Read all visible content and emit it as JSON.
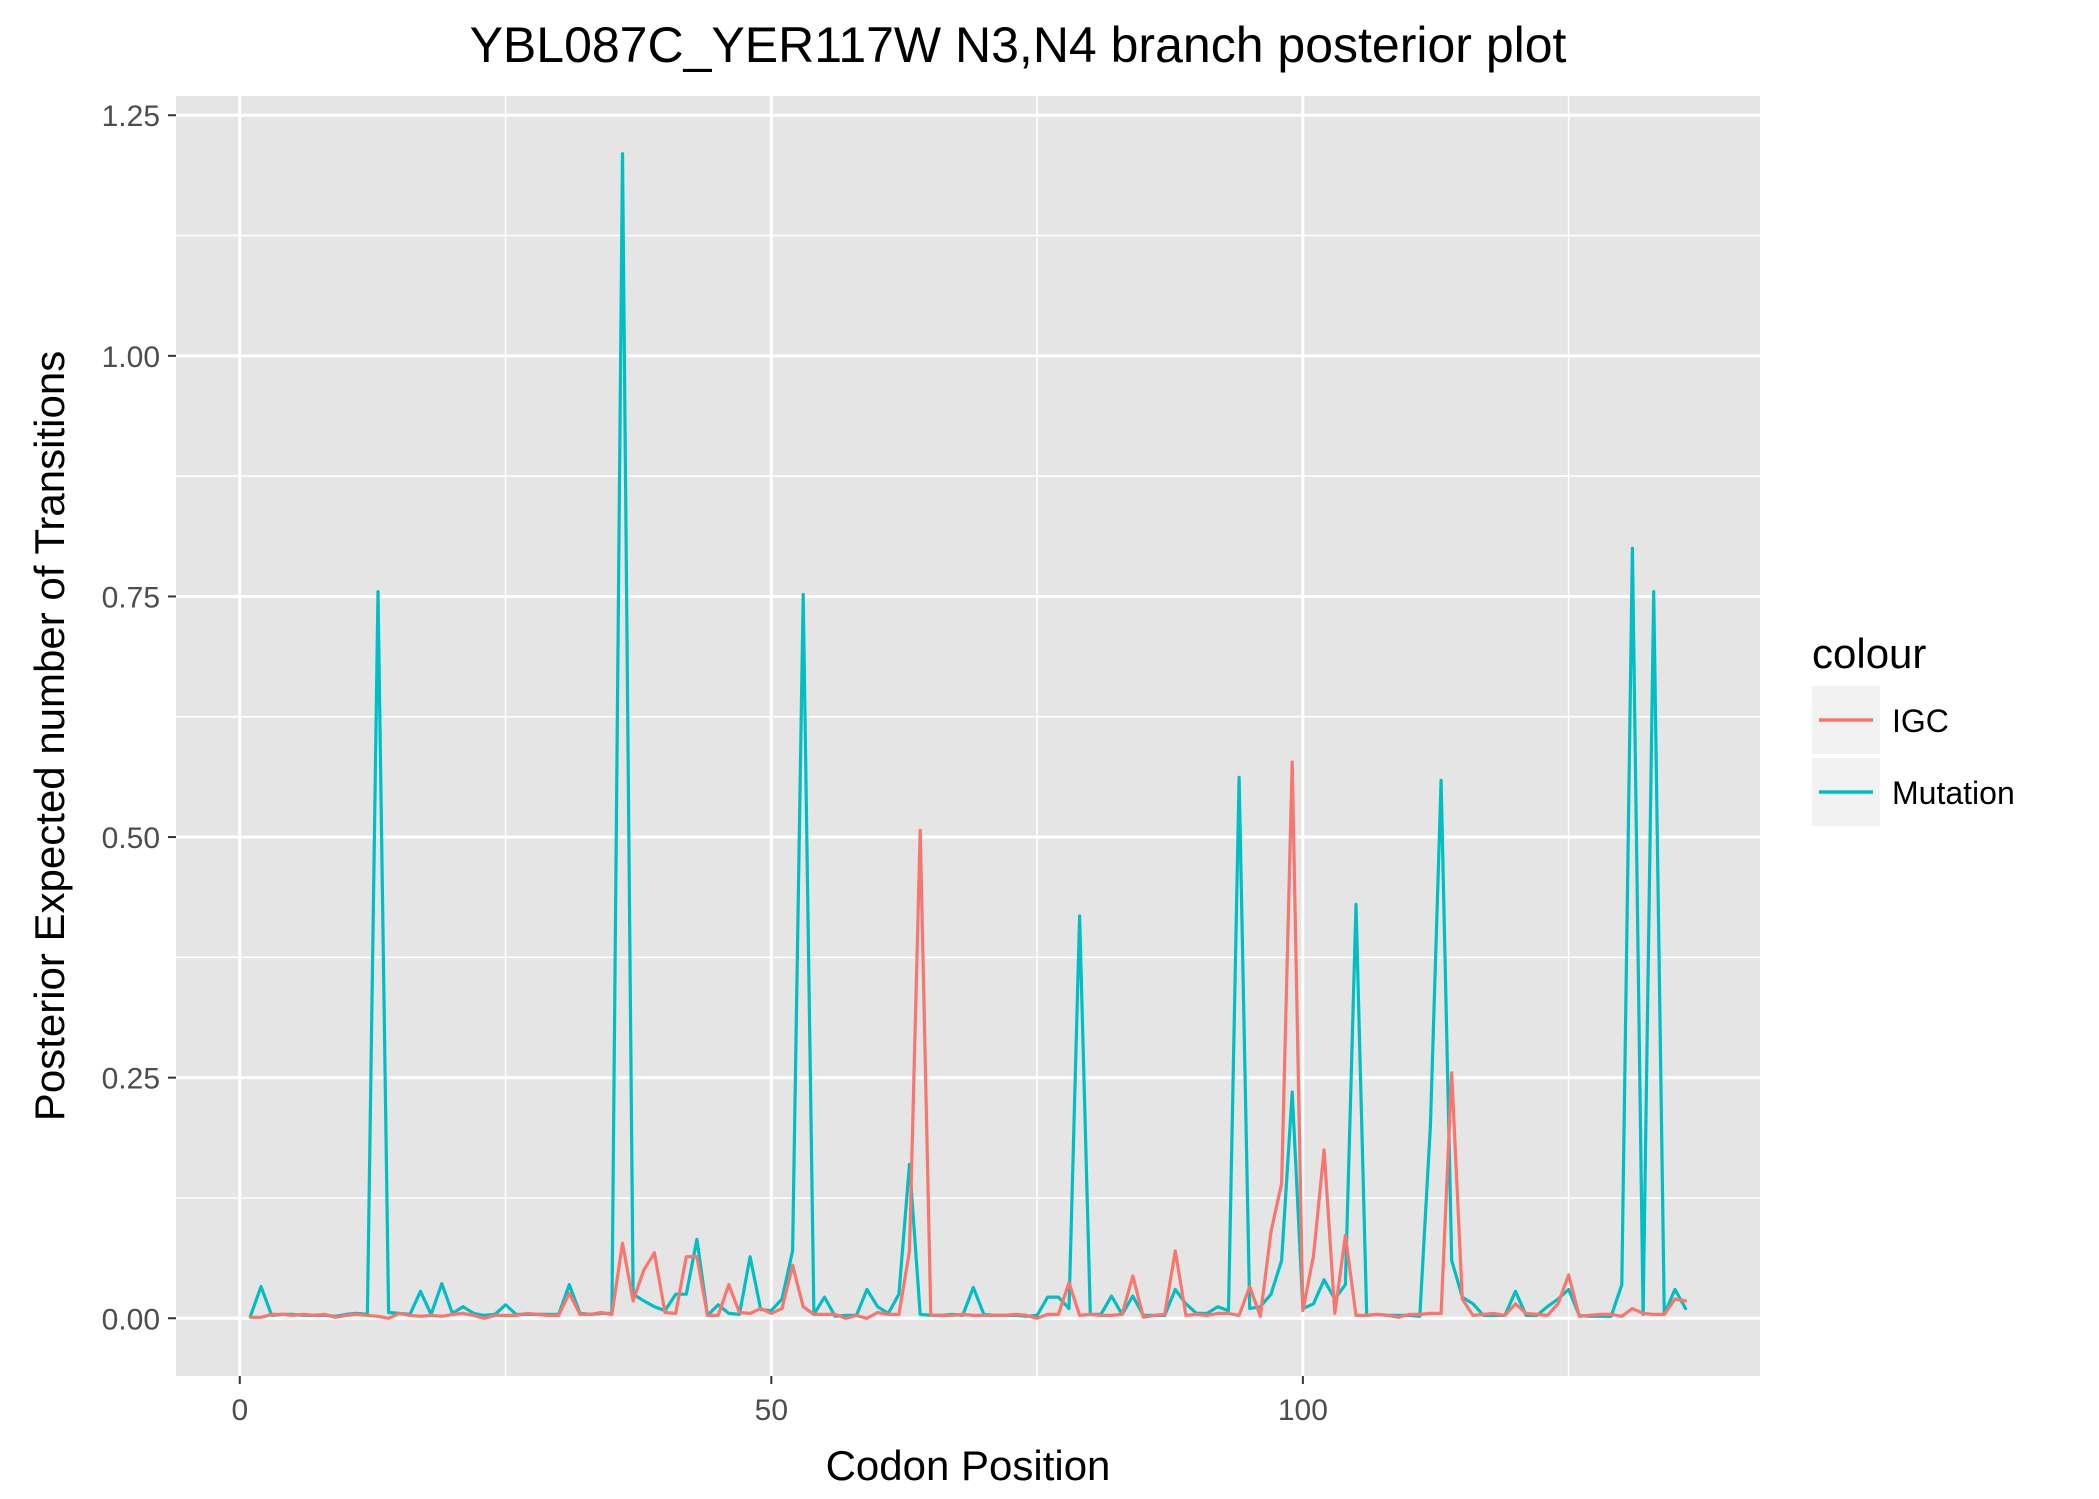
{
  "chart_data": {
    "type": "line",
    "title": "YBL087C_YER117W N3,N4 branch posterior plot",
    "xlabel": "Codon Position",
    "ylabel": "Posterior Expected number of Transitions",
    "xlim": [
      -6,
      143
    ],
    "ylim": [
      -0.06,
      1.27
    ],
    "x_ticks": [
      0,
      50,
      100
    ],
    "x_tick_labels": [
      "0",
      "50",
      "100"
    ],
    "y_ticks": [
      0,
      0.25,
      0.5,
      0.75,
      1.0,
      1.25
    ],
    "y_tick_labels": [
      "0.00",
      "0.25",
      "0.50",
      "0.75",
      "1.00",
      "1.25"
    ],
    "grid": true,
    "legend_position": "right",
    "legend_title": "colour",
    "series": [
      {
        "name": "Mutation",
        "color": "#00BFC4",
        "x": [
          1,
          2,
          3,
          4,
          5,
          6,
          7,
          8,
          9,
          10,
          11,
          12,
          13,
          14,
          15,
          16,
          17,
          18,
          19,
          20,
          21,
          22,
          23,
          24,
          25,
          26,
          27,
          28,
          29,
          30,
          31,
          32,
          33,
          34,
          35,
          36,
          37,
          38,
          39,
          40,
          41,
          42,
          43,
          44,
          45,
          46,
          47,
          48,
          49,
          50,
          51,
          52,
          53,
          54,
          55,
          56,
          57,
          58,
          59,
          60,
          61,
          62,
          63,
          64,
          65,
          66,
          67,
          68,
          69,
          70,
          71,
          72,
          73,
          74,
          75,
          76,
          77,
          78,
          79,
          80,
          81,
          82,
          83,
          84,
          85,
          86,
          87,
          88,
          89,
          90,
          91,
          92,
          93,
          94,
          95,
          96,
          97,
          98,
          99,
          100,
          101,
          102,
          103,
          104,
          105,
          106,
          107,
          108,
          109,
          110,
          111,
          112,
          113,
          114,
          115,
          116,
          117,
          118,
          119,
          120,
          121,
          122,
          123,
          124,
          125,
          126,
          127,
          128,
          129,
          130,
          131,
          132,
          133,
          134,
          135,
          136
        ],
        "y": [
          0.002,
          0.033,
          0.003,
          0.004,
          0.004,
          0.003,
          0.003,
          0.003,
          0.002,
          0.004,
          0.005,
          0.004,
          0.755,
          0.006,
          0.005,
          0.004,
          0.028,
          0.004,
          0.036,
          0.005,
          0.012,
          0.005,
          0.003,
          0.004,
          0.014,
          0.004,
          0.004,
          0.004,
          0.004,
          0.004,
          0.035,
          0.005,
          0.004,
          0.005,
          0.005,
          1.21,
          0.025,
          0.018,
          0.012,
          0.008,
          0.025,
          0.025,
          0.082,
          0.003,
          0.014,
          0.005,
          0.004,
          0.064,
          0.009,
          0.008,
          0.02,
          0.07,
          0.752,
          0.004,
          0.022,
          0.002,
          0.003,
          0.003,
          0.03,
          0.012,
          0.005,
          0.025,
          0.16,
          0.004,
          0.003,
          0.003,
          0.004,
          0.003,
          0.032,
          0.004,
          0.003,
          0.003,
          0.003,
          0.002,
          0.003,
          0.022,
          0.022,
          0.01,
          0.418,
          0.004,
          0.004,
          0.023,
          0.004,
          0.023,
          0.003,
          0.003,
          0.003,
          0.03,
          0.015,
          0.005,
          0.005,
          0.012,
          0.008,
          0.562,
          0.01,
          0.012,
          0.025,
          0.06,
          0.235,
          0.01,
          0.015,
          0.04,
          0.02,
          0.035,
          0.43,
          0.003,
          0.004,
          0.003,
          0.003,
          0.003,
          0.002,
          0.2,
          0.559,
          0.06,
          0.022,
          0.015,
          0.003,
          0.003,
          0.003,
          0.028,
          0.003,
          0.003,
          0.012,
          0.02,
          0.03,
          0.003,
          0.002,
          0.002,
          0.002,
          0.035,
          0.8,
          0.004,
          0.755,
          0.004,
          0.03,
          0.01
        ]
      },
      {
        "name": "IGC",
        "color": "#F8766D",
        "x": [
          1,
          2,
          3,
          4,
          5,
          6,
          7,
          8,
          9,
          10,
          11,
          12,
          13,
          14,
          15,
          16,
          17,
          18,
          19,
          20,
          21,
          22,
          23,
          24,
          25,
          26,
          27,
          28,
          29,
          30,
          31,
          32,
          33,
          34,
          35,
          36,
          37,
          38,
          39,
          40,
          41,
          42,
          43,
          44,
          45,
          46,
          47,
          48,
          49,
          50,
          51,
          52,
          53,
          54,
          55,
          56,
          57,
          58,
          59,
          60,
          61,
          62,
          63,
          64,
          65,
          66,
          67,
          68,
          69,
          70,
          71,
          72,
          73,
          74,
          75,
          76,
          77,
          78,
          79,
          80,
          81,
          82,
          83,
          84,
          85,
          86,
          87,
          88,
          89,
          90,
          91,
          92,
          93,
          94,
          95,
          96,
          97,
          98,
          99,
          100,
          101,
          102,
          103,
          104,
          105,
          106,
          107,
          108,
          109,
          110,
          111,
          112,
          113,
          114,
          115,
          116,
          117,
          118,
          119,
          120,
          121,
          122,
          123,
          124,
          125,
          126,
          127,
          128,
          129,
          130,
          131,
          132,
          133,
          134,
          135,
          136
        ],
        "y": [
          0.001,
          0.001,
          0.004,
          0.004,
          0.003,
          0.004,
          0.003,
          0.004,
          0.001,
          0.003,
          0.004,
          0.003,
          0.002,
          0.0,
          0.005,
          0.003,
          0.002,
          0.003,
          0.002,
          0.004,
          0.005,
          0.003,
          0.0,
          0.003,
          0.003,
          0.003,
          0.005,
          0.004,
          0.003,
          0.003,
          0.026,
          0.004,
          0.004,
          0.006,
          0.004,
          0.078,
          0.018,
          0.05,
          0.068,
          0.006,
          0.005,
          0.064,
          0.064,
          0.003,
          0.003,
          0.035,
          0.006,
          0.005,
          0.01,
          0.005,
          0.01,
          0.055,
          0.012,
          0.004,
          0.004,
          0.004,
          0.0,
          0.003,
          0.0,
          0.006,
          0.004,
          0.004,
          0.07,
          0.507,
          0.003,
          0.003,
          0.003,
          0.004,
          0.003,
          0.003,
          0.003,
          0.003,
          0.004,
          0.003,
          0.0,
          0.004,
          0.004,
          0.037,
          0.003,
          0.004,
          0.003,
          0.003,
          0.004,
          0.044,
          0.001,
          0.003,
          0.004,
          0.07,
          0.003,
          0.004,
          0.003,
          0.005,
          0.005,
          0.003,
          0.033,
          0.002,
          0.09,
          0.14,
          0.578,
          0.008,
          0.065,
          0.175,
          0.005,
          0.086,
          0.003,
          0.003,
          0.004,
          0.003,
          0.001,
          0.004,
          0.004,
          0.005,
          0.005,
          0.255,
          0.02,
          0.003,
          0.004,
          0.005,
          0.003,
          0.015,
          0.005,
          0.004,
          0.003,
          0.015,
          0.045,
          0.002,
          0.003,
          0.004,
          0.004,
          0.002,
          0.01,
          0.005,
          0.004,
          0.004,
          0.02,
          0.018
        ]
      }
    ],
    "legend_order": [
      "IGC",
      "Mutation"
    ]
  }
}
